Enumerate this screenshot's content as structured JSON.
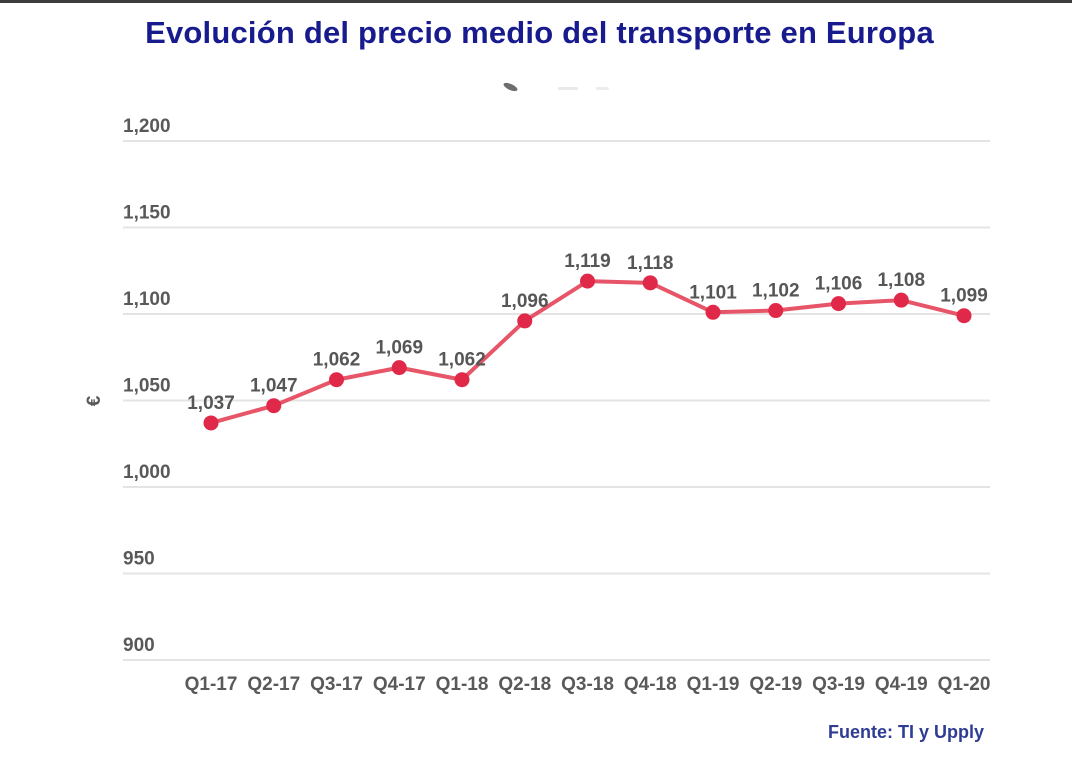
{
  "source": "Fuente: TI y Upply",
  "colors": {
    "title": "#181b8d",
    "source": "#2e3c94",
    "top_border": "#3c3c3c",
    "line": "#e75568",
    "marker": "#e02848",
    "gridline": "#e4e4e4",
    "axis_text": "#595959",
    "value_label_text": "#565656"
  },
  "chart_data": {
    "type": "line",
    "title": "Evolución del precio medio del transporte en Europa",
    "categories": [
      "Q1-17",
      "Q2-17",
      "Q3-17",
      "Q4-17",
      "Q1-18",
      "Q2-18",
      "Q3-18",
      "Q4-18",
      "Q1-19",
      "Q2-19",
      "Q3-19",
      "Q4-19",
      "Q1-20"
    ],
    "values": [
      1037,
      1047,
      1062,
      1069,
      1062,
      1096,
      1119,
      1118,
      1101,
      1102,
      1106,
      1108,
      1099
    ],
    "value_labels": [
      "1,037",
      "1,047",
      "1,062",
      "1,069",
      "1,062",
      "1,096",
      "1,119",
      "1,118",
      "1,101",
      "1,102",
      "1,106",
      "1,108",
      "1,099"
    ],
    "xlabel": "",
    "ylabel": "€",
    "ylim": [
      900,
      1200
    ],
    "yticks": [
      900,
      950,
      1000,
      1050,
      1100,
      1150,
      1200
    ],
    "ytick_labels": [
      "900",
      "950",
      "1,000",
      "1,050",
      "1,100",
      "1,150",
      "1,200"
    ],
    "grid": true,
    "legend": "none",
    "marker": "circle",
    "data_labels": true
  }
}
